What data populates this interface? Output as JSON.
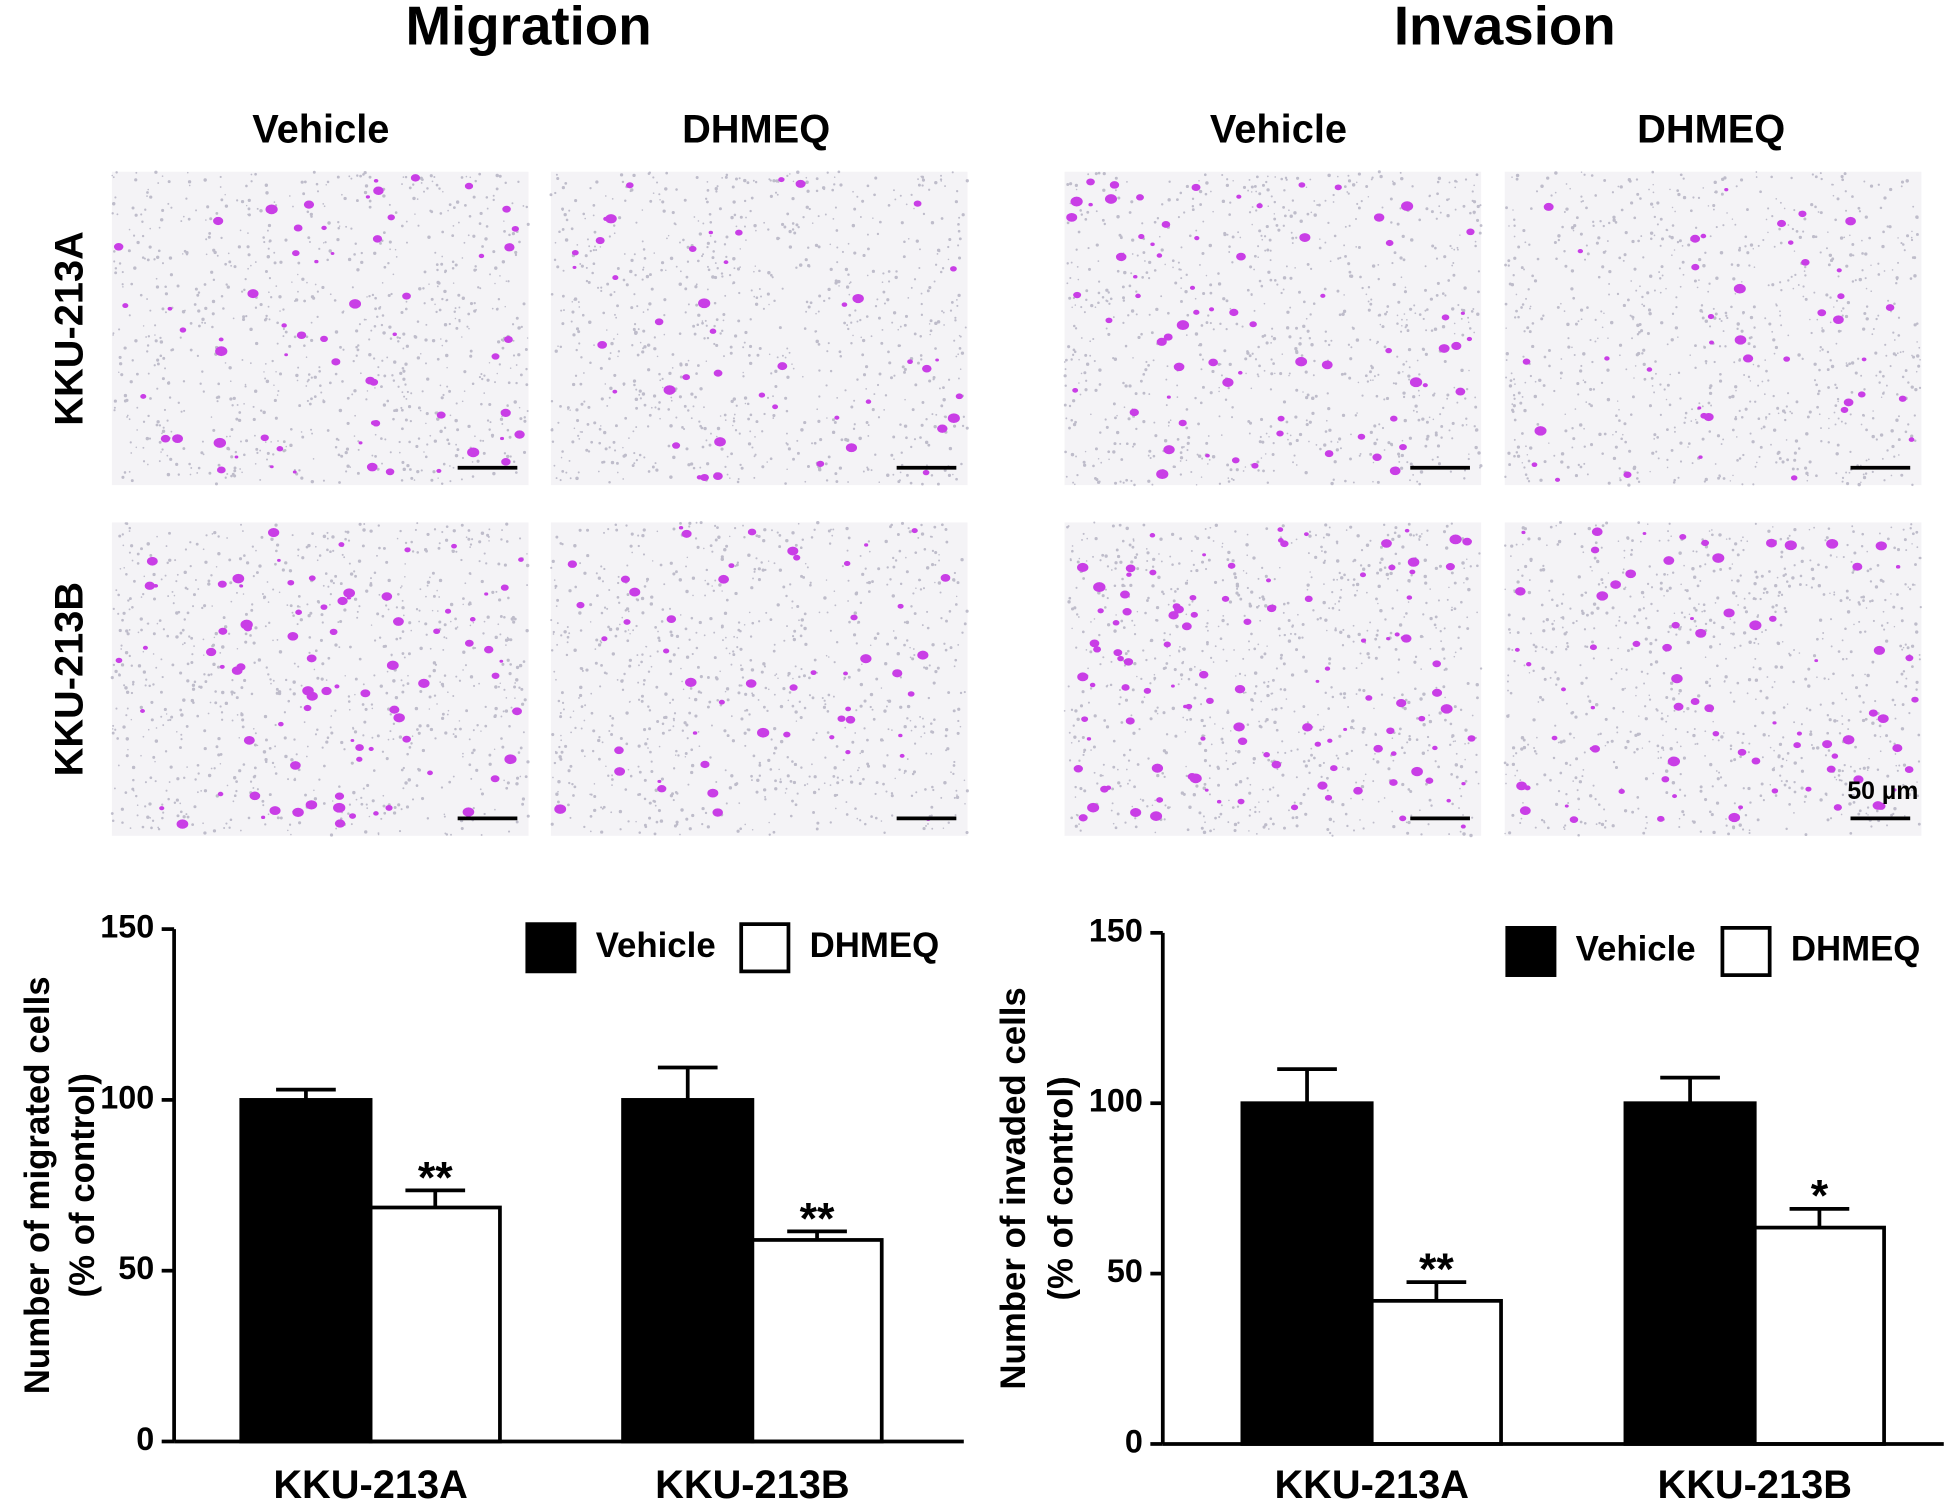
{
  "figure": {
    "panels": [
      {
        "title": "Migration",
        "columns": [
          "Vehicle",
          "DHMEQ"
        ]
      },
      {
        "title": "Invasion",
        "columns": [
          "Vehicle",
          "DHMEQ"
        ]
      }
    ],
    "rows": [
      "KKU-213A",
      "KKU-213B"
    ],
    "scale_bar": "50 µm"
  },
  "chart_data": [
    {
      "type": "bar",
      "ylabel": [
        "Number of migrated cells",
        "(% of control)"
      ],
      "categories": [
        "KKU-213A",
        "KKU-213B"
      ],
      "series": [
        {
          "name": "Vehicle",
          "color": "#000000",
          "values": [
            100,
            100
          ],
          "errors": [
            3,
            9.5
          ]
        },
        {
          "name": "DHMEQ",
          "color": "#ffffff",
          "values": [
            68.5,
            59
          ],
          "errors": [
            5,
            2.5
          ],
          "annotations": [
            "**",
            "**"
          ]
        }
      ],
      "edge_color": "#000000",
      "ylim": [
        0,
        150
      ],
      "yticks": [
        0,
        50,
        100,
        150
      ],
      "grid": false,
      "legend": "top-right"
    },
    {
      "type": "bar",
      "ylabel": [
        "Number of invaded cells",
        "(% of control)"
      ],
      "categories": [
        "KKU-213A",
        "KKU-213B"
      ],
      "series": [
        {
          "name": "Vehicle",
          "color": "#000000",
          "values": [
            100,
            100
          ],
          "errors": [
            10,
            7.5
          ]
        },
        {
          "name": "DHMEQ",
          "color": "#ffffff",
          "values": [
            42,
            63.5
          ],
          "errors": [
            5.5,
            5.5
          ],
          "annotations": [
            "**",
            "*"
          ]
        }
      ],
      "edge_color": "#000000",
      "ylim": [
        0,
        150
      ],
      "yticks": [
        0,
        50,
        100,
        150
      ],
      "grid": false,
      "legend": "top-right"
    }
  ]
}
